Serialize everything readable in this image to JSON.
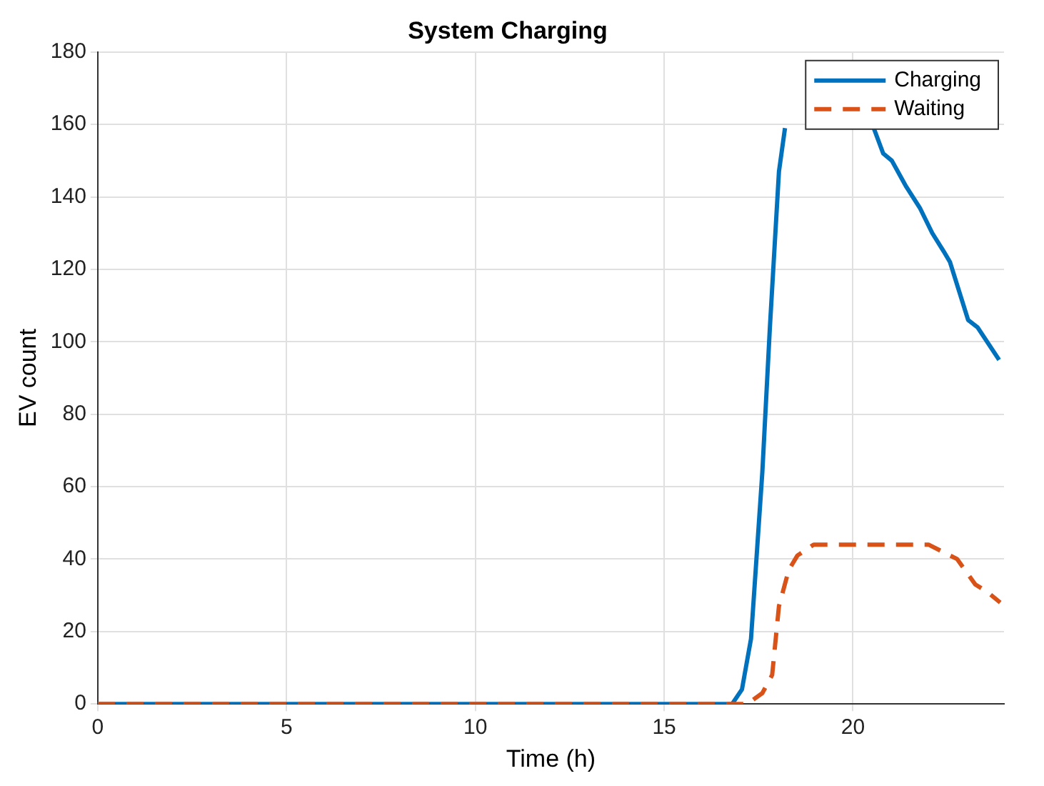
{
  "chart_data": {
    "type": "line",
    "title": "System Charging",
    "xlabel": "Time (h)",
    "ylabel": "EV count",
    "xlim": [
      0,
      24
    ],
    "xticks": [
      0,
      5,
      10,
      15,
      20
    ],
    "ylim": [
      0,
      180
    ],
    "yticks": [
      0,
      20,
      40,
      60,
      80,
      100,
      120,
      140,
      160,
      180
    ],
    "grid": true,
    "legend": "top right",
    "marker": "none",
    "series": [
      {
        "name": "Charging",
        "color": "#0072bd",
        "line_style": "solid",
        "x": [
          0,
          16.8,
          17.06,
          17.3,
          17.6,
          17.8,
          18.04,
          18.2,
          19.4,
          20.55,
          20.8,
          21.03,
          21.4,
          21.77,
          22.1,
          22.4,
          22.57,
          23.05,
          23.3,
          23.87
        ],
        "values": [
          0,
          0,
          4,
          18,
          64,
          104,
          147,
          159,
          null,
          159,
          152,
          150,
          143,
          137,
          130,
          125,
          122,
          106,
          104,
          95
        ]
      },
      {
        "name": "Waiting",
        "color": "#d95319",
        "line_style": "dashed",
        "x": [
          0,
          17.2,
          17.6,
          17.86,
          18.04,
          18.3,
          18.53,
          18.96,
          22.0,
          22.76,
          23.24,
          23.55,
          23.9
        ],
        "values": [
          0,
          0,
          3,
          8,
          27,
          37,
          41,
          44,
          44,
          40,
          33,
          31,
          28
        ]
      }
    ]
  }
}
